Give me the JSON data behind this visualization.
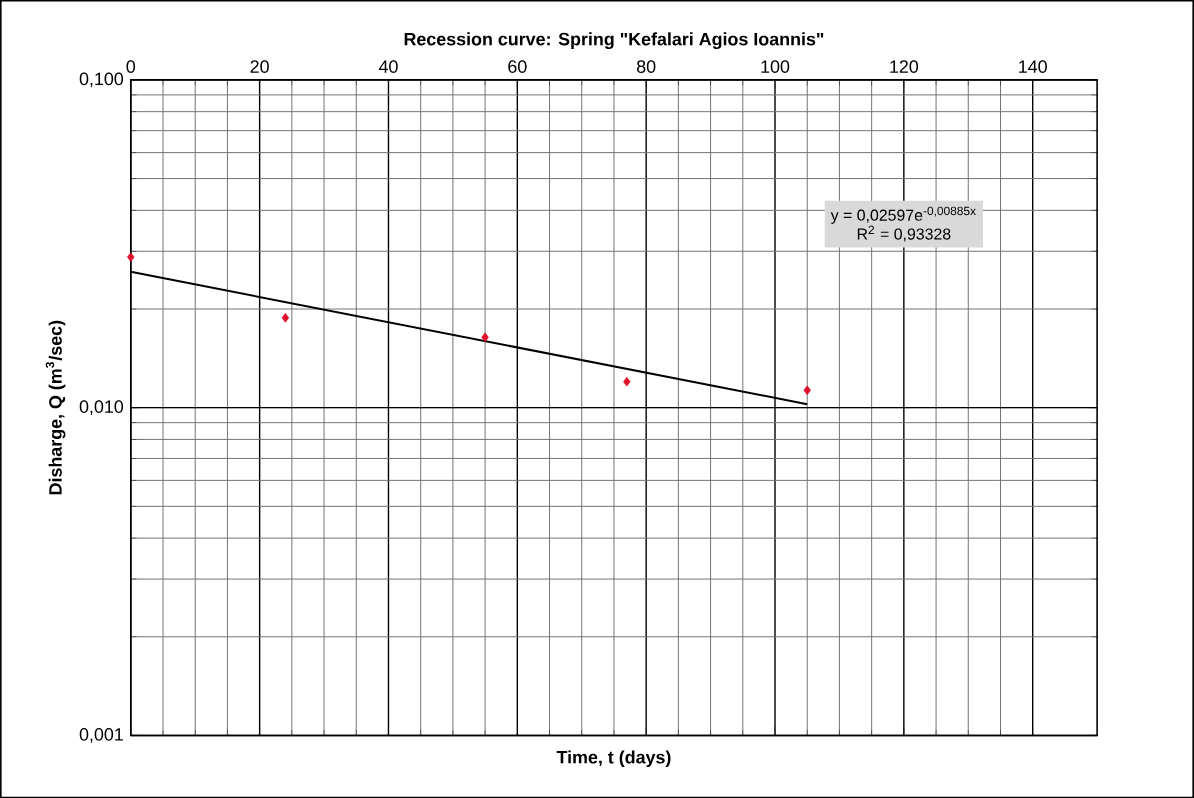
{
  "chart_data": {
    "type": "scatter",
    "title": "Recession curve: Spring \"Kefalari Agios Ioannis\"",
    "xlabel": "Time, t (days)",
    "ylabel": "Disharge, Q (m$^{3}$/sec)",
    "log": "y",
    "grid": true,
    "marker": "diamond",
    "xlim": [
      0,
      150
    ],
    "xticks": [
      0,
      20,
      40,
      60,
      80,
      100,
      120,
      140
    ],
    "ylim": [
      0.001,
      0.1
    ],
    "yticks": [
      {
        "value": 0.001,
        "label": "0,001"
      },
      {
        "value": 0.01,
        "label": "0,010"
      },
      {
        "value": 0.1,
        "label": "0,100"
      }
    ],
    "series": [
      {
        "color": "#e0102a",
        "x": [
          0,
          24,
          55,
          77,
          105
        ],
        "values": [
          0.0288,
          0.0188,
          0.0164,
          0.012,
          0.0113
        ]
      },
      {
        "type": "line",
        "color": "#000000",
        "x": [
          0,
          105
        ],
        "values": [
          0.02597,
          0.01025
        ],
        "marker": "none",
        "line_style": "solid"
      }
    ],
    "annotations": [
      "y = 0,02597e$^{-0,00885x}$",
      "R$^{2}$ = 0,93328"
    ]
  }
}
